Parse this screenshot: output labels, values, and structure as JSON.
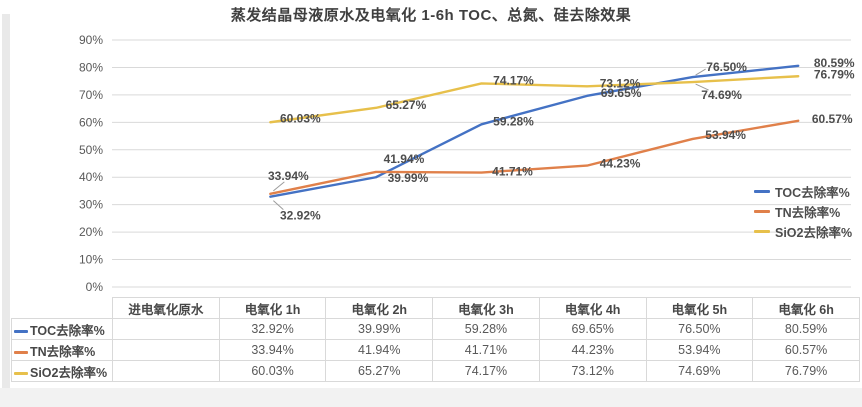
{
  "chart_data": {
    "type": "line",
    "title": "蒸发结晶母液原水及电氧化 1-6h TOC、总氮、硅去除效果",
    "categories": [
      "进电氧化原水",
      "电氧化 1h",
      "电氧化 2h",
      "电氧化 3h",
      "电氧化 4h",
      "电氧化 5h",
      "电氧化 6h"
    ],
    "series": [
      {
        "name": "TOC去除率%",
        "color": "#4472C4",
        "values": [
          null,
          32.92,
          39.99,
          59.28,
          69.65,
          76.5,
          80.59
        ]
      },
      {
        "name": "TN去除率%",
        "color": "#E0804A",
        "values": [
          null,
          33.94,
          41.94,
          41.71,
          44.23,
          53.94,
          60.57
        ]
      },
      {
        "name": "SiO2去除率%",
        "color": "#E7C04B",
        "values": [
          null,
          60.03,
          65.27,
          74.17,
          73.12,
          74.69,
          76.79
        ]
      }
    ],
    "xlabel": "",
    "ylabel": "",
    "ylim": [
      0,
      90
    ],
    "ytick_step": 10,
    "ytick_labels": [
      "0%",
      "10%",
      "20%",
      "30%",
      "40%",
      "50%",
      "60%",
      "70%",
      "80%",
      "90%"
    ],
    "grid": true,
    "legend_position": "right",
    "data_labels": true,
    "data_label_format": "0.00%"
  },
  "table": {
    "header": [
      "",
      "进电氧化原水",
      "电氧化 1h",
      "电氧化 2h",
      "电氧化 3h",
      "电氧化 4h",
      "电氧化 5h",
      "电氧化 6h"
    ],
    "rows": [
      {
        "label": "TOC去除率%",
        "marker_color": "#4472C4",
        "values": [
          "",
          "32.92%",
          "39.99%",
          "59.28%",
          "69.65%",
          "76.50%",
          "80.59%"
        ]
      },
      {
        "label": "TN去除率%",
        "marker_color": "#E0804A",
        "values": [
          "",
          "33.94%",
          "41.94%",
          "41.71%",
          "44.23%",
          "53.94%",
          "60.57%"
        ]
      },
      {
        "label": "SiO2去除率%",
        "marker_color": "#E7C04B",
        "values": [
          "",
          "60.03%",
          "65.27%",
          "74.17%",
          "73.12%",
          "74.69%",
          "76.79%"
        ]
      }
    ]
  },
  "colors": {
    "grid": "#d9d9d9",
    "axis_text": "#595959",
    "data_label_text": "#4d4d4d",
    "leader_line": "#9c9c9c",
    "table_border": "#d9d9d9"
  }
}
